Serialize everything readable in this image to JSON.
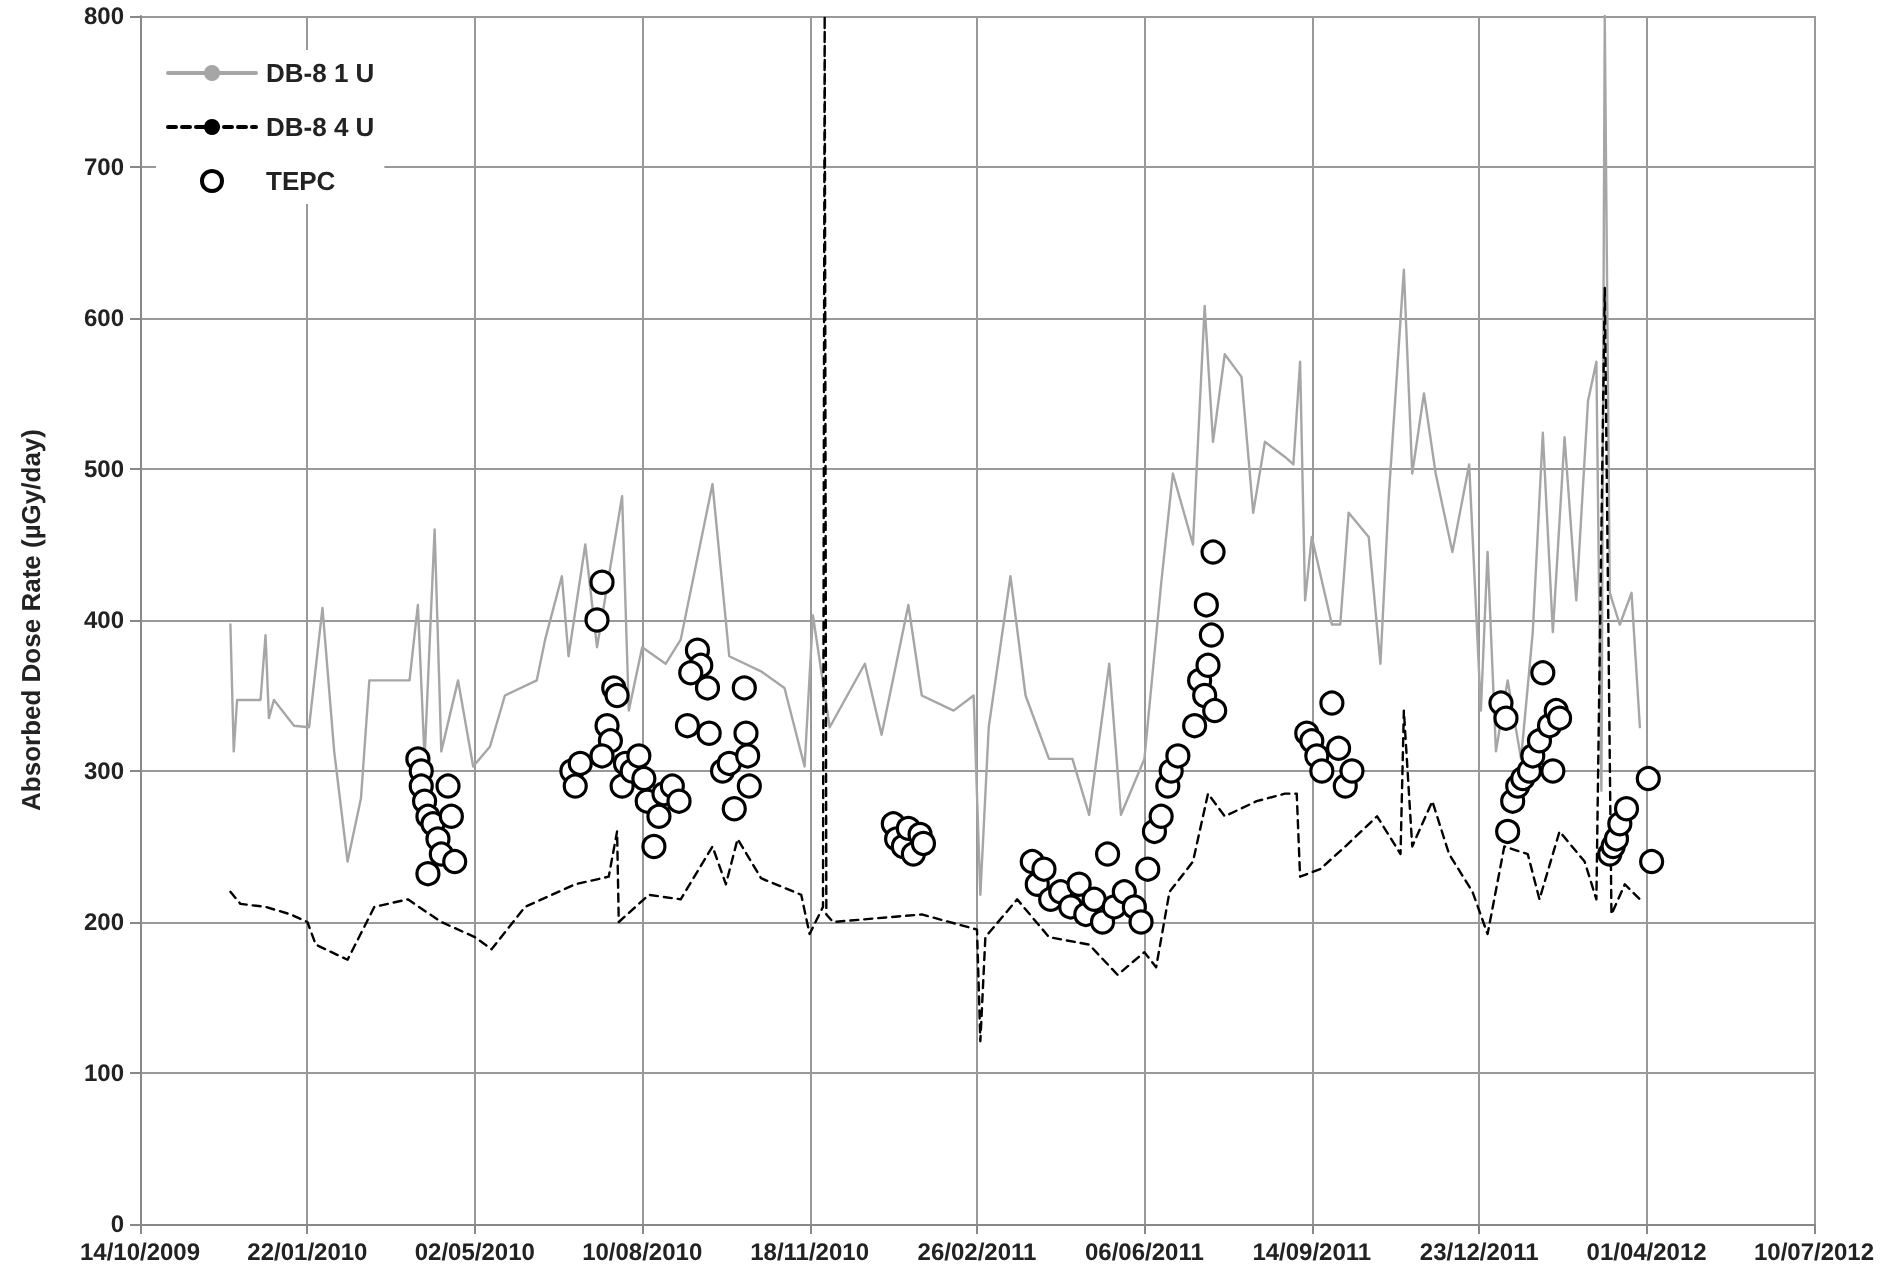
{
  "chart_data": {
    "type": "line",
    "ylabel": "Absorbed Dose Rate (µGy/day)",
    "xlim": [
      "2009-10-14",
      "2012-07-10"
    ],
    "xticks": [
      {
        "value": "2009-10-14",
        "label": "14/10/2009"
      },
      {
        "value": "2010-01-22",
        "label": "22/01/2010"
      },
      {
        "value": "2010-05-02",
        "label": "02/05/2010"
      },
      {
        "value": "2010-08-10",
        "label": "10/08/2010"
      },
      {
        "value": "2010-11-18",
        "label": "18/11/2010"
      },
      {
        "value": "2011-02-26",
        "label": "26/02/2011"
      },
      {
        "value": "2011-06-06",
        "label": "06/06/2011"
      },
      {
        "value": "2011-09-14",
        "label": "14/09/2011"
      },
      {
        "value": "2011-12-23",
        "label": "23/12/2011"
      },
      {
        "value": "2012-04-01",
        "label": "01/04/2012"
      },
      {
        "value": "2012-07-10",
        "label": "10/07/2012"
      }
    ],
    "ylim": [
      0,
      800
    ],
    "yticks": [
      0,
      100,
      200,
      300,
      400,
      500,
      600,
      700,
      800
    ],
    "grid": true,
    "legend": "top left",
    "series": [
      {
        "name": "DB-8 1 U",
        "color": "#a6a6a6",
        "line_style": "solid",
        "marker": "none",
        "x": [
          "2009-12-07",
          "2009-12-09",
          "2009-12-11",
          "2009-12-25",
          "2009-12-28",
          "2009-12-30",
          "2010-01-02",
          "2010-01-14",
          "2010-01-23",
          "2010-01-31",
          "2010-02-07",
          "2010-02-15",
          "2010-02-23",
          "2010-02-28",
          "2010-03-10",
          "2010-03-24",
          "2010-03-29",
          "2010-04-02",
          "2010-04-08",
          "2010-04-12",
          "2010-04-22",
          "2010-05-01",
          "2010-05-11",
          "2010-05-20",
          "2010-06-08",
          "2010-06-13",
          "2010-06-23",
          "2010-06-27",
          "2010-07-07",
          "2010-07-14",
          "2010-07-29",
          "2010-08-02",
          "2010-08-10",
          "2010-08-24",
          "2010-09-02",
          "2010-09-21",
          "2010-10-01",
          "2010-10-20",
          "2010-11-03",
          "2010-11-15",
          "2010-11-20",
          "2010-11-30",
          "2010-12-21",
          "2010-12-31",
          "2011-01-16",
          "2011-01-24",
          "2011-02-12",
          "2011-02-24",
          "2011-02-28",
          "2011-03-05",
          "2011-03-18",
          "2011-03-27",
          "2011-04-10",
          "2011-04-24",
          "2011-05-04",
          "2011-05-16",
          "2011-05-23",
          "2011-06-06",
          "2011-06-16",
          "2011-06-23",
          "2011-07-05",
          "2011-07-12",
          "2011-07-17",
          "2011-07-24",
          "2011-08-03",
          "2011-08-10",
          "2011-08-17",
          "2011-08-29",
          "2011-09-03",
          "2011-09-07",
          "2011-09-10",
          "2011-09-14",
          "2011-09-26",
          "2011-10-01",
          "2011-10-06",
          "2011-10-18",
          "2011-10-25",
          "2011-10-30",
          "2011-11-08",
          "2011-11-13",
          "2011-11-20",
          "2011-11-27",
          "2011-12-07",
          "2011-12-17",
          "2011-12-24",
          "2011-12-28",
          "2012-01-02",
          "2012-01-09",
          "2012-01-17",
          "2012-01-24",
          "2012-01-30",
          "2012-02-05",
          "2012-02-12",
          "2012-02-19",
          "2012-02-26",
          "2012-03-02",
          "2012-03-05",
          "2012-03-07",
          "2012-03-10",
          "2012-03-16",
          "2012-03-23",
          "2012-03-28"
        ],
        "values": [
          397,
          313,
          347,
          347,
          390,
          335,
          347,
          330,
          329,
          408,
          313,
          240,
          282,
          360,
          360,
          360,
          410,
          308,
          460,
          313,
          360,
          303,
          316,
          350,
          360,
          387,
          429,
          376,
          450,
          382,
          482,
          340,
          382,
          371,
          387,
          490,
          376,
          366,
          355,
          303,
          403,
          329,
          371,
          324,
          410,
          350,
          340,
          350,
          218,
          329,
          429,
          350,
          308,
          308,
          271,
          371,
          271,
          308,
          424,
          497,
          450,
          608,
          518,
          576,
          561,
          471,
          518,
          508,
          503,
          571,
          413,
          455,
          397,
          397,
          471,
          455,
          371,
          482,
          632,
          497,
          550,
          497,
          445,
          503,
          340,
          445,
          313,
          360,
          308,
          392,
          524,
          392,
          521,
          413,
          545,
          571,
          287,
          800,
          418,
          397,
          418,
          329
        ]
      },
      {
        "name": "DB-8 4 U",
        "color": "#000000",
        "line_style": "dashed",
        "marker": "none",
        "x": [
          "2009-12-07",
          "2009-12-13",
          "2009-12-28",
          "2010-01-12",
          "2010-01-22",
          "2010-01-27",
          "2010-02-15",
          "2010-03-03",
          "2010-03-23",
          "2010-04-12",
          "2010-05-02",
          "2010-05-12",
          "2010-06-01",
          "2010-07-01",
          "2010-07-21",
          "2010-07-26",
          "2010-07-27",
          "2010-08-14",
          "2010-09-02",
          "2010-09-21",
          "2010-09-29",
          "2010-10-06",
          "2010-10-20",
          "2010-11-13",
          "2010-11-18",
          "2010-11-26",
          "2010-11-27",
          "2010-11-28",
          "2010-12-02",
          "2011-01-24",
          "2011-02-26",
          "2011-02-28",
          "2011-03-03",
          "2011-03-22",
          "2011-04-10",
          "2011-05-04",
          "2011-05-21",
          "2011-06-06",
          "2011-06-13",
          "2011-06-21",
          "2011-07-05",
          "2011-07-14",
          "2011-07-24",
          "2011-08-12",
          "2011-08-29",
          "2011-09-05",
          "2011-09-07",
          "2011-09-19",
          "2011-10-04",
          "2011-10-23",
          "2011-11-06",
          "2011-11-08",
          "2011-11-13",
          "2011-11-25",
          "2011-12-05",
          "2011-12-19",
          "2011-12-28",
          "2012-01-07",
          "2012-01-21",
          "2012-01-28",
          "2012-02-09",
          "2012-02-24",
          "2012-03-02",
          "2012-03-07",
          "2012-03-11",
          "2012-03-19",
          "2012-03-28"
        ],
        "values": [
          220,
          212,
          210,
          205,
          200,
          185,
          175,
          210,
          215,
          200,
          190,
          182,
          210,
          225,
          230,
          260,
          200,
          218,
          215,
          250,
          225,
          255,
          229,
          218,
          192,
          210,
          800,
          205,
          200,
          205,
          195,
          121,
          190,
          215,
          190,
          185,
          165,
          180,
          170,
          220,
          240,
          285,
          270,
          280,
          285,
          285,
          230,
          235,
          250,
          270,
          245,
          340,
          250,
          280,
          245,
          220,
          192,
          250,
          245,
          215,
          260,
          240,
          215,
          620,
          205,
          225,
          215
        ]
      },
      {
        "name": "TEPC",
        "type": "scatter",
        "color": "#000000",
        "marker": "circle",
        "x": [
          "2010-03-29",
          "2010-03-31",
          "2010-03-31",
          "2010-04-02",
          "2010-04-04",
          "2010-04-07",
          "2010-04-10",
          "2010-04-04",
          "2010-04-12",
          "2010-04-16",
          "2010-04-18",
          "2010-04-20",
          "2010-06-29",
          "2010-07-01",
          "2010-07-04",
          "2010-07-14",
          "2010-07-17",
          "2010-07-24",
          "2010-07-26",
          "2010-07-20",
          "2010-07-22",
          "2010-07-17",
          "2010-07-31",
          "2010-07-29",
          "2010-08-04",
          "2010-08-08",
          "2010-08-11",
          "2010-08-13",
          "2010-08-17",
          "2010-08-20",
          "2010-08-23",
          "2010-08-28",
          "2010-09-01",
          "2010-09-12",
          "2010-09-14",
          "2010-09-06",
          "2010-09-08",
          "2010-09-18",
          "2010-09-19",
          "2010-09-27",
          "2010-10-01",
          "2010-10-04",
          "2010-10-10",
          "2010-10-11",
          "2010-10-12",
          "2010-10-13",
          "2011-01-07",
          "2011-01-09",
          "2011-01-13",
          "2011-01-16",
          "2011-01-19",
          "2011-01-23",
          "2011-01-25",
          "2011-03-31",
          "2011-04-03",
          "2011-04-07",
          "2011-04-11",
          "2011-04-17",
          "2011-04-23",
          "2011-04-28",
          "2011-05-02",
          "2011-05-07",
          "2011-05-12",
          "2011-05-15",
          "2011-05-19",
          "2011-05-25",
          "2011-05-31",
          "2011-06-04",
          "2011-06-08",
          "2011-06-12",
          "2011-06-16",
          "2011-06-20",
          "2011-06-22",
          "2011-06-26",
          "2011-07-06",
          "2011-07-09",
          "2011-07-12",
          "2011-07-14",
          "2011-07-16",
          "2011-07-13",
          "2011-07-17",
          "2011-07-18",
          "2011-09-11",
          "2011-09-14",
          "2011-09-17",
          "2011-09-20",
          "2011-09-26",
          "2011-09-30",
          "2011-10-04",
          "2011-10-08",
          "2012-01-05",
          "2012-01-08",
          "2012-01-09",
          "2012-01-12",
          "2012-01-15",
          "2012-01-18",
          "2012-01-22",
          "2012-01-24",
          "2012-01-28",
          "2012-01-30",
          "2012-02-03",
          "2012-02-07",
          "2012-02-09",
          "2012-02-05",
          "2012-03-10",
          "2012-03-12",
          "2012-03-14",
          "2012-03-16",
          "2012-03-20",
          "2012-04-02",
          "2012-04-04"
        ],
        "values": [
          308,
          300,
          290,
          280,
          270,
          265,
          255,
          232,
          245,
          290,
          270,
          240,
          300,
          290,
          305,
          400,
          425,
          355,
          350,
          330,
          320,
          310,
          305,
          290,
          300,
          310,
          295,
          280,
          250,
          270,
          285,
          290,
          280,
          380,
          370,
          330,
          365,
          355,
          325,
          300,
          305,
          275,
          355,
          325,
          310,
          290,
          265,
          255,
          250,
          262,
          245,
          258,
          252,
          240,
          225,
          235,
          215,
          220,
          210,
          225,
          205,
          215,
          200,
          245,
          210,
          220,
          210,
          200,
          235,
          260,
          270,
          290,
          300,
          310,
          330,
          360,
          350,
          370,
          390,
          410,
          445,
          340,
          325,
          320,
          310,
          300,
          345,
          315,
          290,
          300,
          345,
          335,
          260,
          280,
          290,
          295,
          300,
          310,
          320,
          365,
          330,
          340,
          335,
          300,
          245,
          250,
          255,
          265,
          275,
          295,
          240
        ]
      }
    ]
  }
}
